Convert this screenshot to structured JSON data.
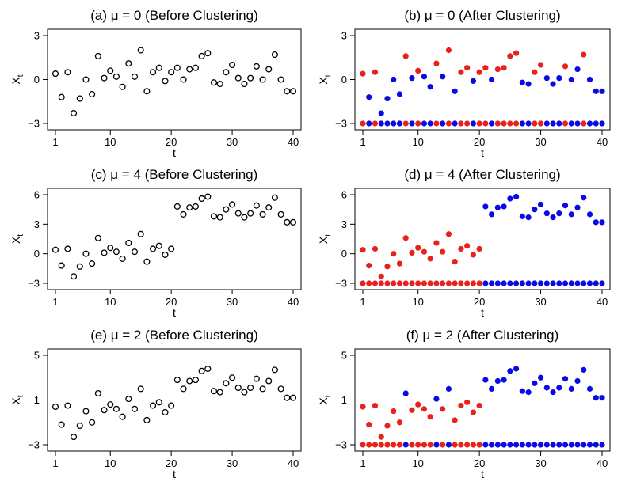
{
  "chart_data": [
    {
      "type": "scatter",
      "title": "(a) μ = 0 (Before Clustering)",
      "xlabel": "t",
      "ylabel": "X",
      "ylabel_sub": "t",
      "xlim": [
        1,
        40
      ],
      "ylim": [
        -3,
        3
      ],
      "xticks": [
        1,
        10,
        20,
        30,
        40
      ],
      "yticks": [
        -3,
        0,
        3
      ],
      "style": "open",
      "x": [
        1,
        2,
        3,
        4,
        5,
        6,
        7,
        8,
        9,
        10,
        11,
        12,
        13,
        14,
        15,
        16,
        17,
        18,
        19,
        20,
        21,
        22,
        23,
        24,
        25,
        26,
        27,
        28,
        29,
        30,
        31,
        32,
        33,
        34,
        35,
        36,
        37,
        38,
        39,
        40
      ],
      "y": [
        0.4,
        -1.2,
        0.5,
        -2.3,
        -1.3,
        0.0,
        -1.0,
        1.6,
        0.1,
        0.6,
        0.2,
        -0.5,
        1.1,
        0.2,
        2.0,
        -0.8,
        0.5,
        0.8,
        -0.1,
        0.5,
        0.8,
        0.0,
        0.7,
        0.8,
        1.6,
        1.8,
        -0.2,
        -0.3,
        0.5,
        1.0,
        0.1,
        -0.3,
        0.1,
        0.9,
        0.0,
        0.7,
        1.7,
        0.0,
        -0.8,
        -0.8
      ]
    },
    {
      "type": "scatter",
      "title": "(b) μ = 0 (After Clustering)",
      "xlabel": "t",
      "ylabel": "X",
      "ylabel_sub": "t",
      "xlim": [
        1,
        40
      ],
      "ylim": [
        -3,
        3
      ],
      "xticks": [
        1,
        10,
        20,
        30,
        40
      ],
      "yticks": [
        -3,
        0,
        3
      ],
      "style": "filled",
      "colors": {
        "cluster_1": "#e8211d",
        "cluster_2": "#0a0ae6"
      },
      "x": [
        1,
        2,
        3,
        4,
        5,
        6,
        7,
        8,
        9,
        10,
        11,
        12,
        13,
        14,
        15,
        16,
        17,
        18,
        19,
        20,
        21,
        22,
        23,
        24,
        25,
        26,
        27,
        28,
        29,
        30,
        31,
        32,
        33,
        34,
        35,
        36,
        37,
        38,
        39,
        40
      ],
      "y": [
        0.4,
        -1.2,
        0.5,
        -2.3,
        -1.3,
        0.0,
        -1.0,
        1.6,
        0.1,
        0.6,
        0.2,
        -0.5,
        1.1,
        0.2,
        2.0,
        -0.8,
        0.5,
        0.8,
        -0.1,
        0.5,
        0.8,
        0.0,
        0.7,
        0.8,
        1.6,
        1.8,
        -0.2,
        -0.3,
        0.5,
        1.0,
        0.1,
        -0.3,
        0.1,
        0.9,
        0.0,
        0.7,
        1.7,
        0.0,
        -0.8,
        -0.8
      ],
      "cluster": [
        1,
        2,
        1,
        2,
        2,
        2,
        2,
        1,
        2,
        1,
        2,
        2,
        1,
        2,
        1,
        2,
        1,
        1,
        2,
        1,
        1,
        2,
        1,
        1,
        1,
        1,
        2,
        2,
        1,
        1,
        2,
        2,
        2,
        1,
        2,
        2,
        1,
        2,
        2,
        2
      ],
      "indicator_y": -3
    },
    {
      "type": "scatter",
      "title": "(c) μ = 4 (Before Clustering)",
      "xlabel": "t",
      "ylabel": "X",
      "ylabel_sub": "t",
      "xlim": [
        1,
        40
      ],
      "ylim": [
        -3,
        6
      ],
      "xticks": [
        1,
        10,
        20,
        30,
        40
      ],
      "yticks": [
        -3,
        0,
        3,
        6
      ],
      "style": "open",
      "x": [
        1,
        2,
        3,
        4,
        5,
        6,
        7,
        8,
        9,
        10,
        11,
        12,
        13,
        14,
        15,
        16,
        17,
        18,
        19,
        20,
        21,
        22,
        23,
        24,
        25,
        26,
        27,
        28,
        29,
        30,
        31,
        32,
        33,
        34,
        35,
        36,
        37,
        38,
        39,
        40
      ],
      "y": [
        0.4,
        -1.2,
        0.5,
        -2.3,
        -1.3,
        0.0,
        -1.0,
        1.6,
        0.1,
        0.6,
        0.2,
        -0.5,
        1.1,
        0.2,
        2.0,
        -0.8,
        0.5,
        0.8,
        -0.1,
        0.5,
        4.8,
        4.0,
        4.7,
        4.8,
        5.6,
        5.8,
        3.8,
        3.7,
        4.5,
        5.0,
        4.1,
        3.7,
        4.1,
        4.9,
        4.0,
        4.7,
        5.7,
        4.0,
        3.2,
        3.2
      ]
    },
    {
      "type": "scatter",
      "title": "(d) μ = 4 (After Clustering)",
      "xlabel": "t",
      "ylabel": "X",
      "ylabel_sub": "t",
      "xlim": [
        1,
        40
      ],
      "ylim": [
        -3,
        6
      ],
      "xticks": [
        1,
        10,
        20,
        30,
        40
      ],
      "yticks": [
        -3,
        0,
        3,
        6
      ],
      "style": "filled",
      "colors": {
        "cluster_1": "#e8211d",
        "cluster_2": "#0a0ae6"
      },
      "x": [
        1,
        2,
        3,
        4,
        5,
        6,
        7,
        8,
        9,
        10,
        11,
        12,
        13,
        14,
        15,
        16,
        17,
        18,
        19,
        20,
        21,
        22,
        23,
        24,
        25,
        26,
        27,
        28,
        29,
        30,
        31,
        32,
        33,
        34,
        35,
        36,
        37,
        38,
        39,
        40
      ],
      "y": [
        0.4,
        -1.2,
        0.5,
        -2.3,
        -1.3,
        0.0,
        -1.0,
        1.6,
        0.1,
        0.6,
        0.2,
        -0.5,
        1.1,
        0.2,
        2.0,
        -0.8,
        0.5,
        0.8,
        -0.1,
        0.5,
        4.8,
        4.0,
        4.7,
        4.8,
        5.6,
        5.8,
        3.8,
        3.7,
        4.5,
        5.0,
        4.1,
        3.7,
        4.1,
        4.9,
        4.0,
        4.7,
        5.7,
        4.0,
        3.2,
        3.2
      ],
      "cluster": [
        1,
        1,
        1,
        1,
        1,
        1,
        1,
        1,
        1,
        1,
        1,
        1,
        1,
        1,
        1,
        1,
        1,
        1,
        1,
        1,
        2,
        2,
        2,
        2,
        2,
        2,
        2,
        2,
        2,
        2,
        2,
        2,
        2,
        2,
        2,
        2,
        2,
        2,
        2,
        2
      ],
      "indicator_y": -3
    },
    {
      "type": "scatter",
      "title": "(e) μ = 2 (Before Clustering)",
      "xlabel": "t",
      "ylabel": "X",
      "ylabel_sub": "t",
      "xlim": [
        1,
        40
      ],
      "ylim": [
        -3,
        5
      ],
      "xticks": [
        1,
        10,
        20,
        30,
        40
      ],
      "yticks": [
        -3,
        1,
        5
      ],
      "style": "open",
      "x": [
        1,
        2,
        3,
        4,
        5,
        6,
        7,
        8,
        9,
        10,
        11,
        12,
        13,
        14,
        15,
        16,
        17,
        18,
        19,
        20,
        21,
        22,
        23,
        24,
        25,
        26,
        27,
        28,
        29,
        30,
        31,
        32,
        33,
        34,
        35,
        36,
        37,
        38,
        39,
        40
      ],
      "y": [
        0.4,
        -1.2,
        0.5,
        -2.3,
        -1.3,
        0.0,
        -1.0,
        1.6,
        0.1,
        0.6,
        0.2,
        -0.5,
        1.1,
        0.2,
        2.0,
        -0.8,
        0.5,
        0.8,
        -0.1,
        0.5,
        2.8,
        2.0,
        2.7,
        2.8,
        3.6,
        3.8,
        1.8,
        1.7,
        2.5,
        3.0,
        2.1,
        1.7,
        2.1,
        2.9,
        2.0,
        2.7,
        3.7,
        2.0,
        1.2,
        1.2
      ]
    },
    {
      "type": "scatter",
      "title": "(f) μ = 2 (After Clustering)",
      "xlabel": "t",
      "ylabel": "X",
      "ylabel_sub": "t",
      "xlim": [
        1,
        40
      ],
      "ylim": [
        -3,
        5
      ],
      "xticks": [
        1,
        10,
        20,
        30,
        40
      ],
      "yticks": [
        -3,
        1,
        5
      ],
      "style": "filled",
      "colors": {
        "cluster_1": "#e8211d",
        "cluster_2": "#0a0ae6"
      },
      "x": [
        1,
        2,
        3,
        4,
        5,
        6,
        7,
        8,
        9,
        10,
        11,
        12,
        13,
        14,
        15,
        16,
        17,
        18,
        19,
        20,
        21,
        22,
        23,
        24,
        25,
        26,
        27,
        28,
        29,
        30,
        31,
        32,
        33,
        34,
        35,
        36,
        37,
        38,
        39,
        40
      ],
      "y": [
        0.4,
        -1.2,
        0.5,
        -2.3,
        -1.3,
        0.0,
        -1.0,
        1.6,
        0.1,
        0.6,
        0.2,
        -0.5,
        1.1,
        0.2,
        2.0,
        -0.8,
        0.5,
        0.8,
        -0.1,
        0.5,
        2.8,
        2.0,
        2.7,
        2.8,
        3.6,
        3.8,
        1.8,
        1.7,
        2.5,
        3.0,
        2.1,
        1.7,
        2.1,
        2.9,
        2.0,
        2.7,
        3.7,
        2.0,
        1.2,
        1.2
      ],
      "cluster": [
        1,
        1,
        1,
        1,
        1,
        1,
        1,
        2,
        1,
        1,
        1,
        1,
        2,
        1,
        2,
        1,
        1,
        1,
        1,
        1,
        2,
        2,
        2,
        2,
        2,
        2,
        2,
        2,
        2,
        2,
        2,
        2,
        2,
        2,
        2,
        2,
        2,
        2,
        2,
        2
      ],
      "indicator_y": -3
    }
  ]
}
